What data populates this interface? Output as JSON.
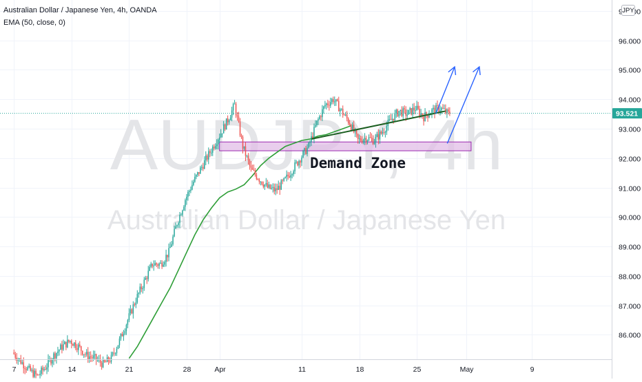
{
  "legend": {
    "symbol_line": "Australian Dollar / Japanese Yen, 4h, OANDA",
    "indicator_line": "EMA (50, close, 0)"
  },
  "watermark": {
    "symbol": "AUDJPY, 4h",
    "name": "Australian Dollar / Japanese Yen"
  },
  "currency_button": "JPY",
  "last_price_label": "93.521",
  "annotation": {
    "label": "Demand Zone"
  },
  "colors": {
    "up": "#26a69a",
    "down": "#ef5350",
    "ema": "#2e9e37",
    "trendline": "#1b5e20",
    "arrow": "#2962ff",
    "zone_fill": "#e1bee7",
    "zone_border": "#9c27b0",
    "price_tag": "#26a69a"
  },
  "chart_data": {
    "type": "candlestick",
    "y_axis": {
      "range": [
        85.17,
        97.37
      ],
      "ticks": [
        "97.000",
        "96.000",
        "95.000",
        "94.000",
        "93.000",
        "92.000",
        "91.000",
        "90.000",
        "89.000",
        "88.000",
        "87.000",
        "86.000"
      ],
      "tick_values": [
        97,
        96,
        95,
        94,
        93,
        92,
        91,
        90,
        89,
        88,
        87,
        86
      ]
    },
    "x_axis": {
      "ticks": [
        "7",
        "14",
        "21",
        "28",
        "Apr",
        "11",
        "18",
        "25",
        "May",
        "9"
      ],
      "tick_days": [
        0,
        7,
        14,
        21,
        25,
        35,
        42,
        49,
        55,
        63
      ],
      "range_days": [
        -1.7,
        72.7
      ]
    },
    "last_price": 93.521,
    "price_path": [
      [
        0,
        85.4
      ],
      [
        1,
        85.1
      ],
      [
        2,
        84.8
      ],
      [
        3,
        84.6
      ],
      [
        4,
        84.9
      ],
      [
        5,
        85.3
      ],
      [
        6,
        85.6
      ],
      [
        7,
        85.8
      ],
      [
        8,
        85.6
      ],
      [
        9,
        85.3
      ],
      [
        10,
        85.2
      ],
      [
        11,
        85.0
      ],
      [
        12,
        85.2
      ],
      [
        13,
        85.8
      ],
      [
        14,
        86.5
      ],
      [
        15,
        87.2
      ],
      [
        16,
        87.8
      ],
      [
        17,
        88.4
      ],
      [
        18,
        88.4
      ],
      [
        19,
        88.8
      ],
      [
        20,
        89.8
      ],
      [
        21,
        90.6
      ],
      [
        22,
        91.2
      ],
      [
        23,
        91.7
      ],
      [
        24,
        92.2
      ],
      [
        25,
        92.7
      ],
      [
        26,
        93.2
      ],
      [
        27,
        93.8
      ],
      [
        28,
        92.4
      ],
      [
        29,
        91.6
      ],
      [
        30,
        91.3
      ],
      [
        31,
        91.0
      ],
      [
        32,
        90.9
      ],
      [
        33,
        91.2
      ],
      [
        34,
        91.6
      ],
      [
        35,
        92.0
      ],
      [
        36,
        92.4
      ],
      [
        37,
        93.2
      ],
      [
        38,
        93.8
      ],
      [
        39,
        94.0
      ],
      [
        40,
        93.6
      ],
      [
        41,
        93.2
      ],
      [
        42,
        92.6
      ],
      [
        43,
        92.7
      ],
      [
        44,
        92.6
      ],
      [
        45,
        92.9
      ],
      [
        46,
        93.3
      ],
      [
        47,
        93.6
      ],
      [
        48,
        93.5
      ],
      [
        49,
        93.7
      ],
      [
        50,
        93.4
      ],
      [
        51,
        93.6
      ],
      [
        52,
        93.7
      ],
      [
        53,
        93.5
      ]
    ],
    "ema_50": [
      [
        14.0,
        85.2
      ],
      [
        15,
        85.6
      ],
      [
        16,
        86.1
      ],
      [
        17,
        86.6
      ],
      [
        18,
        87.1
      ],
      [
        19,
        87.6
      ],
      [
        20,
        88.2
      ],
      [
        21,
        88.8
      ],
      [
        22,
        89.4
      ],
      [
        23,
        89.9
      ],
      [
        24,
        90.3
      ],
      [
        25,
        90.65
      ],
      [
        26,
        90.85
      ],
      [
        27,
        90.95
      ],
      [
        28,
        91.1
      ],
      [
        29,
        91.4
      ],
      [
        30,
        91.75
      ],
      [
        31,
        92.0
      ],
      [
        32,
        92.2
      ],
      [
        33,
        92.4
      ],
      [
        34,
        92.5
      ],
      [
        35,
        92.6
      ],
      [
        36,
        92.65
      ],
      [
        37,
        92.75
      ],
      [
        38,
        92.8
      ],
      [
        39,
        92.9
      ],
      [
        40,
        93.0
      ],
      [
        41,
        93.1
      ]
    ],
    "demand_zone": {
      "y_range": [
        92.25,
        92.55
      ],
      "x_range_days": [
        25.0,
        55.6
      ]
    },
    "trendline": [
      [
        36.2,
        92.65
      ],
      [
        52.5,
        93.6
      ]
    ],
    "arrows": [
      [
        [
          51.3,
          93.5
        ],
        [
          53.6,
          95.1
        ]
      ],
      [
        [
          52.7,
          92.5
        ],
        [
          56.6,
          95.1
        ]
      ]
    ]
  }
}
